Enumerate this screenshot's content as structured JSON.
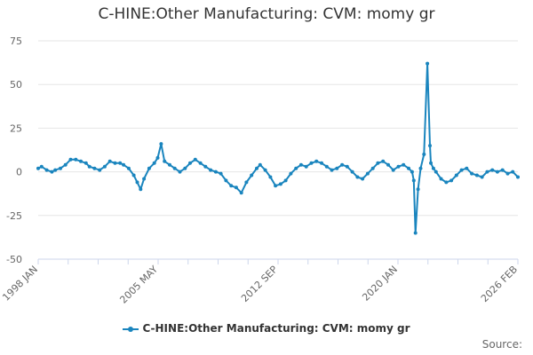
{
  "chart_data": {
    "type": "line",
    "title": "C-HINE:Other Manufacturing: CVM: momy gr",
    "xlabel": "",
    "ylabel": "",
    "ylim": [
      -50,
      75
    ],
    "yticks": [
      75,
      50,
      25,
      0,
      -25,
      -50
    ],
    "xlim": [
      1998.0,
      2026.1
    ],
    "xtick_labels": [
      "1998 JAN",
      "2005 MAY",
      "2012 SEP",
      "2020 JAN",
      "2026 FEB"
    ],
    "grid": "horizontal",
    "legend": "bottom",
    "series": [
      {
        "name": "C-HINE:Other Manufacturing: CVM: momy gr",
        "color": "#1a85be",
        "x": [
          1998.0,
          1998.2,
          1998.5,
          1998.8,
          1999.0,
          1999.3,
          1999.6,
          1999.9,
          2000.2,
          2000.5,
          2000.8,
          2001.0,
          2001.3,
          2001.6,
          2001.9,
          2002.2,
          2002.5,
          2002.8,
          2003.0,
          2003.3,
          2003.6,
          2003.8,
          2004.0,
          2004.2,
          2004.5,
          2004.8,
          2005.0,
          2005.2,
          2005.4,
          2005.7,
          2006.0,
          2006.3,
          2006.6,
          2006.9,
          2007.2,
          2007.5,
          2007.8,
          2008.1,
          2008.4,
          2008.7,
          2009.0,
          2009.3,
          2009.6,
          2009.9,
          2010.2,
          2010.5,
          2010.8,
          2011.0,
          2011.3,
          2011.6,
          2011.9,
          2012.2,
          2012.5,
          2012.8,
          2013.1,
          2013.4,
          2013.7,
          2014.0,
          2014.3,
          2014.6,
          2014.9,
          2015.2,
          2015.5,
          2015.8,
          2016.1,
          2016.4,
          2016.7,
          2017.0,
          2017.3,
          2017.6,
          2017.9,
          2018.2,
          2018.5,
          2018.8,
          2019.1,
          2019.4,
          2019.7,
          2019.9,
          2020.0,
          2020.1,
          2020.25,
          2020.4,
          2020.6,
          2020.8,
          2020.95,
          2021.0,
          2021.15,
          2021.3,
          2021.6,
          2021.9,
          2022.2,
          2022.5,
          2022.8,
          2023.1,
          2023.4,
          2023.7,
          2024.0,
          2024.3,
          2024.6,
          2024.9,
          2025.2,
          2025.5,
          2025.8,
          2026.1
        ],
        "values": [
          2,
          3,
          1,
          0,
          1,
          2,
          4,
          7,
          7,
          6,
          5,
          3,
          2,
          1,
          3,
          6,
          5,
          5,
          4,
          2,
          -2,
          -6,
          -10,
          -4,
          2,
          5,
          8,
          16,
          6,
          4,
          2,
          0,
          2,
          5,
          7,
          5,
          3,
          1,
          0,
          -1,
          -5,
          -8,
          -9,
          -12,
          -6,
          -2,
          2,
          4,
          1,
          -3,
          -8,
          -7,
          -5,
          -1,
          2,
          4,
          3,
          5,
          6,
          5,
          3,
          1,
          2,
          4,
          3,
          0,
          -3,
          -4,
          -1,
          2,
          5,
          6,
          4,
          1,
          3,
          4,
          2,
          0,
          -5,
          -35,
          -10,
          2,
          10,
          62,
          15,
          5,
          2,
          0,
          -4,
          -6,
          -5,
          -2,
          1,
          2,
          -1,
          -2,
          -3,
          0,
          1,
          0,
          1,
          -1,
          0,
          -3
        ]
      }
    ]
  },
  "legend_label": "C-HINE:Other Manufacturing: CVM: momy gr",
  "source_label": "Source:"
}
